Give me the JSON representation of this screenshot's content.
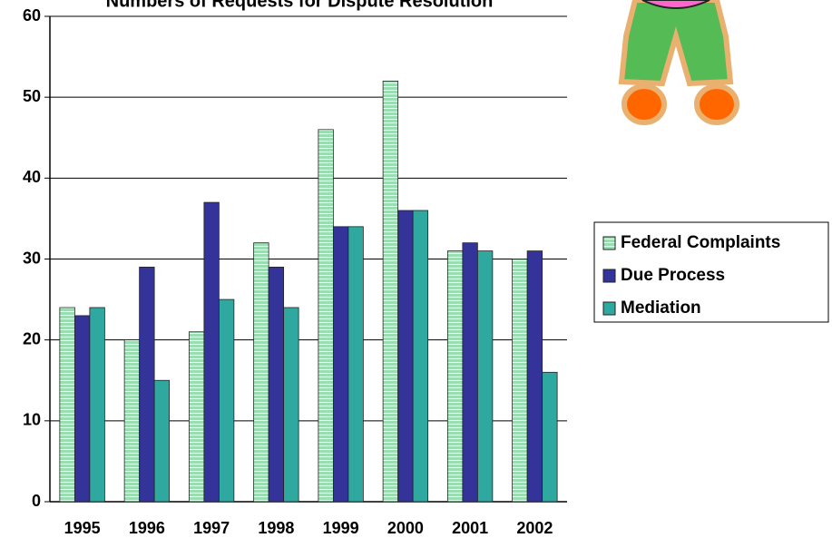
{
  "chart_data": {
    "type": "bar",
    "title": "Numbers of Requests for Dispute Resolution",
    "categories": [
      "1995",
      "1996",
      "1997",
      "1998",
      "1999",
      "2000",
      "2001",
      "2002"
    ],
    "series": [
      {
        "name": "Federal Complaints",
        "color": "#99ddb0",
        "values": [
          24,
          20,
          21,
          32,
          46,
          52,
          31,
          30
        ]
      },
      {
        "name": "Due Process",
        "color": "#333399",
        "values": [
          23,
          29,
          37,
          29,
          34,
          36,
          32,
          31
        ]
      },
      {
        "name": "Mediation",
        "color": "#2fa8a0",
        "values": [
          24,
          15,
          25,
          24,
          34,
          36,
          31,
          16
        ]
      }
    ],
    "ylim": [
      0,
      60
    ],
    "yticks": [
      0,
      10,
      20,
      30,
      40,
      50,
      60
    ],
    "grid": true,
    "legend": "right"
  }
}
